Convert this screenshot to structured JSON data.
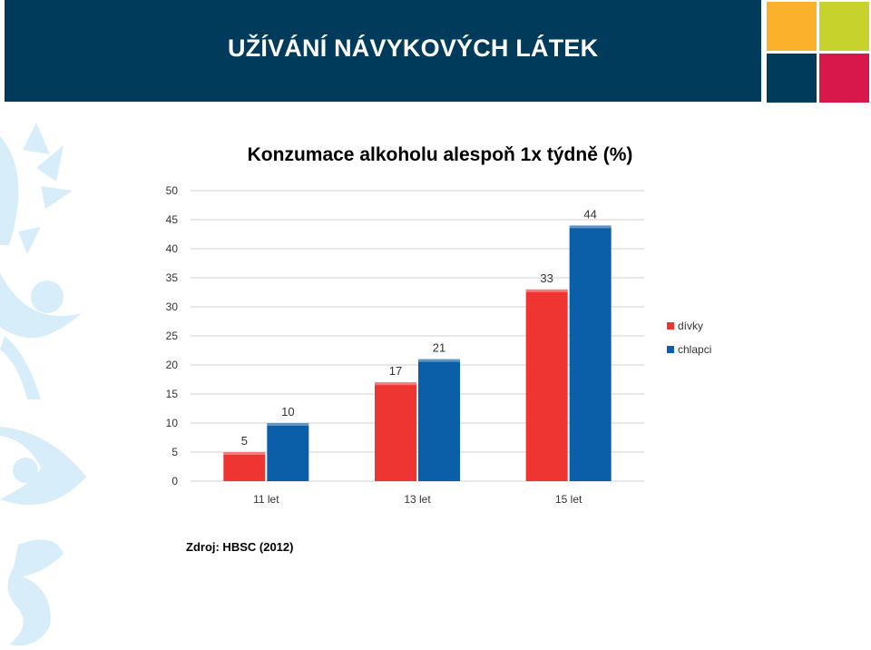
{
  "slide": {
    "title": "UŽÍVÁNÍ NÁVYKOVÝCH LÁTEK",
    "source": "Zdroj: HBSC (2012)"
  },
  "colors": {
    "header_bg": "#003b5c",
    "tile_orange": "#fbb12b",
    "tile_green": "#c7d22c",
    "tile_navy": "#003b5c",
    "tile_red": "#d8174a",
    "decor": "#d7edfa",
    "series_divky": "#ee3532",
    "series_chlapci": "#0b5ea8",
    "grid": "#d0d0d0"
  },
  "chart_data": {
    "type": "bar",
    "title": "Konzumace alkoholu alespoň 1x týdně (%)",
    "categories": [
      "11 let",
      "13 let",
      "15 let"
    ],
    "series": [
      {
        "name": "dívky",
        "values": [
          5,
          17,
          33
        ],
        "color": "#ee3532"
      },
      {
        "name": "chlapci",
        "values": [
          10,
          21,
          44
        ],
        "color": "#0b5ea8"
      }
    ],
    "ylim": [
      0,
      50
    ],
    "yticks": [
      "0",
      "5",
      "10",
      "15",
      "20",
      "25",
      "30",
      "35",
      "40",
      "45",
      "50"
    ],
    "grid": true,
    "legend_position": "right",
    "data_labels": true
  }
}
